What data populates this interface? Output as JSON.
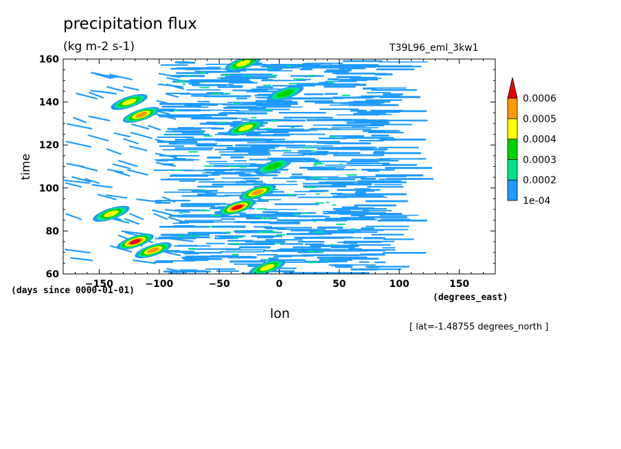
{
  "chart_data": {
    "type": "heatmap",
    "title": "precipitation flux",
    "units": "(kg m-2 s-1)",
    "run_label": "T39L96_eml_3kw1",
    "xlabel": "lon",
    "ylabel": "time",
    "x_unit_label": "(degrees_east)",
    "y_unit_label": "(days since 0000-01-01)",
    "footnote": "[ lat=-1.48755 degrees_north ]",
    "xlim": [
      -180,
      180
    ],
    "ylim": [
      60,
      160
    ],
    "xticks": [
      -150,
      -100,
      -50,
      0,
      50,
      100,
      150
    ],
    "yticks": [
      60,
      80,
      100,
      120,
      140,
      160
    ],
    "colorbar": {
      "levels": [
        "1e-04",
        "0.0002",
        "0.0003",
        "0.0004",
        "0.0005",
        "0.0006"
      ],
      "colors": [
        "#1e9bff",
        "#00e38c",
        "#00d200",
        "#ffff00",
        "#ff9a00",
        "#e60000"
      ]
    },
    "features": [
      {
        "lon": -35,
        "time": 91,
        "intensity": 0.00065
      },
      {
        "lon": -18,
        "time": 98,
        "intensity": 0.0005
      },
      {
        "lon": -120,
        "time": 75,
        "intensity": 0.00065
      },
      {
        "lon": -105,
        "time": 71,
        "intensity": 0.0005
      },
      {
        "lon": -140,
        "time": 88,
        "intensity": 0.0004
      },
      {
        "lon": -115,
        "time": 134,
        "intensity": 0.0005
      },
      {
        "lon": -125,
        "time": 140,
        "intensity": 0.0004
      },
      {
        "lon": -10,
        "time": 63,
        "intensity": 0.0004
      },
      {
        "lon": -28,
        "time": 128,
        "intensity": 0.0004
      },
      {
        "lon": -5,
        "time": 110,
        "intensity": 0.0003
      },
      {
        "lon": 5,
        "time": 144,
        "intensity": 0.0003
      },
      {
        "lon": -30,
        "time": 158,
        "intensity": 0.0004
      }
    ]
  }
}
